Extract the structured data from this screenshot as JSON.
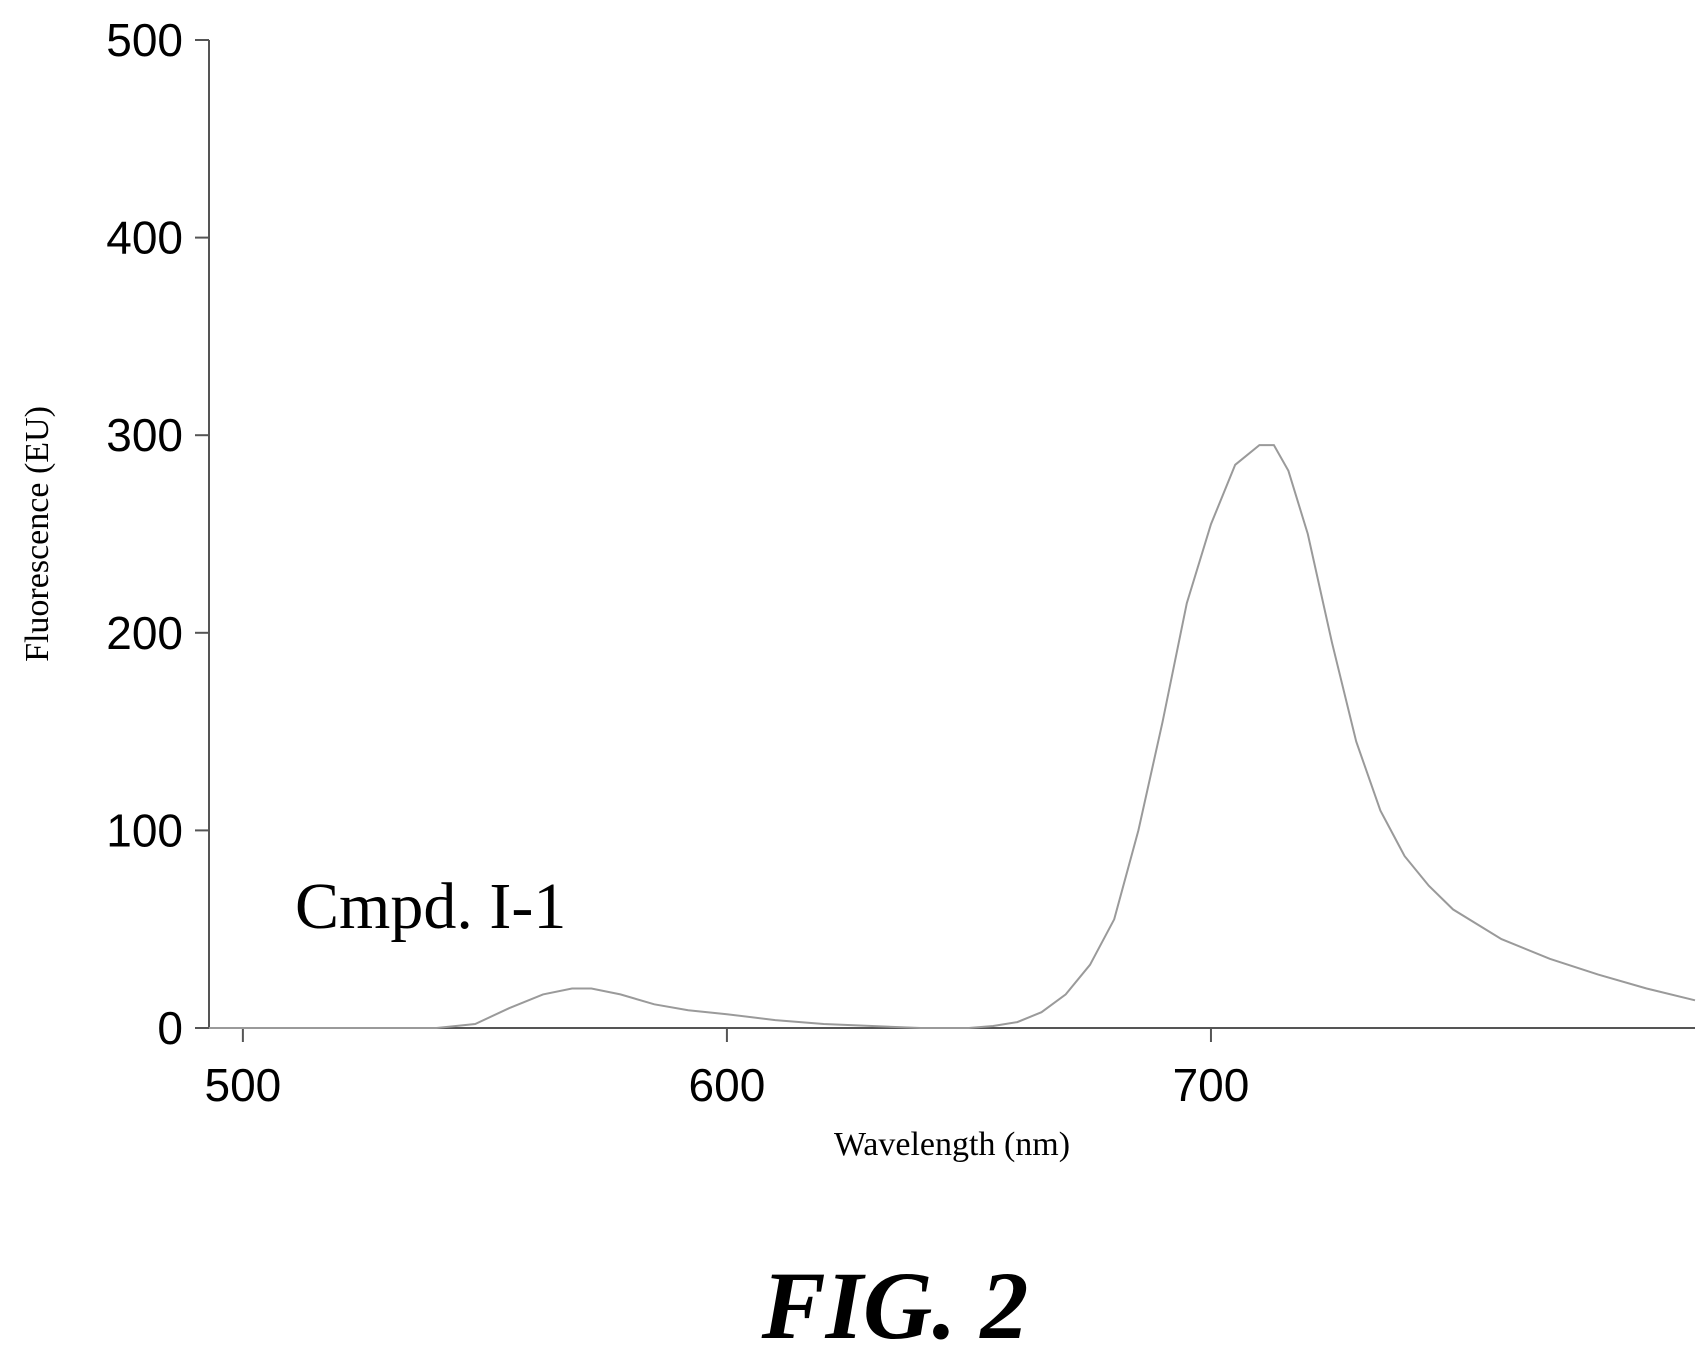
{
  "chart_data": {
    "type": "line",
    "xlabel": "Wavelength (nm)",
    "ylabel": "Fluorescence (EU)",
    "xlim": [
      493,
      800
    ],
    "ylim": [
      0,
      500
    ],
    "x_ticks": [
      500,
      600,
      700
    ],
    "y_ticks": [
      0,
      100,
      200,
      300,
      400,
      500
    ],
    "grid": false,
    "annotation": "Cmpd. I-1",
    "series": [
      {
        "color": "#9a9a9a",
        "x": [
          493,
          520,
          540,
          548,
          555,
          562,
          568,
          572,
          578,
          585,
          592,
          600,
          610,
          620,
          630,
          640,
          650,
          655,
          660,
          665,
          670,
          675,
          680,
          685,
          690,
          695,
          700,
          705,
          710,
          713,
          716,
          720,
          725,
          730,
          735,
          740,
          745,
          750,
          760,
          770,
          780,
          790,
          800
        ],
        "y": [
          0,
          0,
          0,
          2,
          10,
          17,
          20,
          20,
          17,
          12,
          9,
          7,
          4,
          2,
          1,
          0,
          0,
          1,
          3,
          8,
          17,
          32,
          55,
          100,
          155,
          215,
          255,
          285,
          295,
          295,
          282,
          250,
          195,
          145,
          110,
          87,
          72,
          60,
          45,
          35,
          27,
          20,
          14
        ]
      }
    ]
  },
  "figure_caption": "FIG. 2"
}
